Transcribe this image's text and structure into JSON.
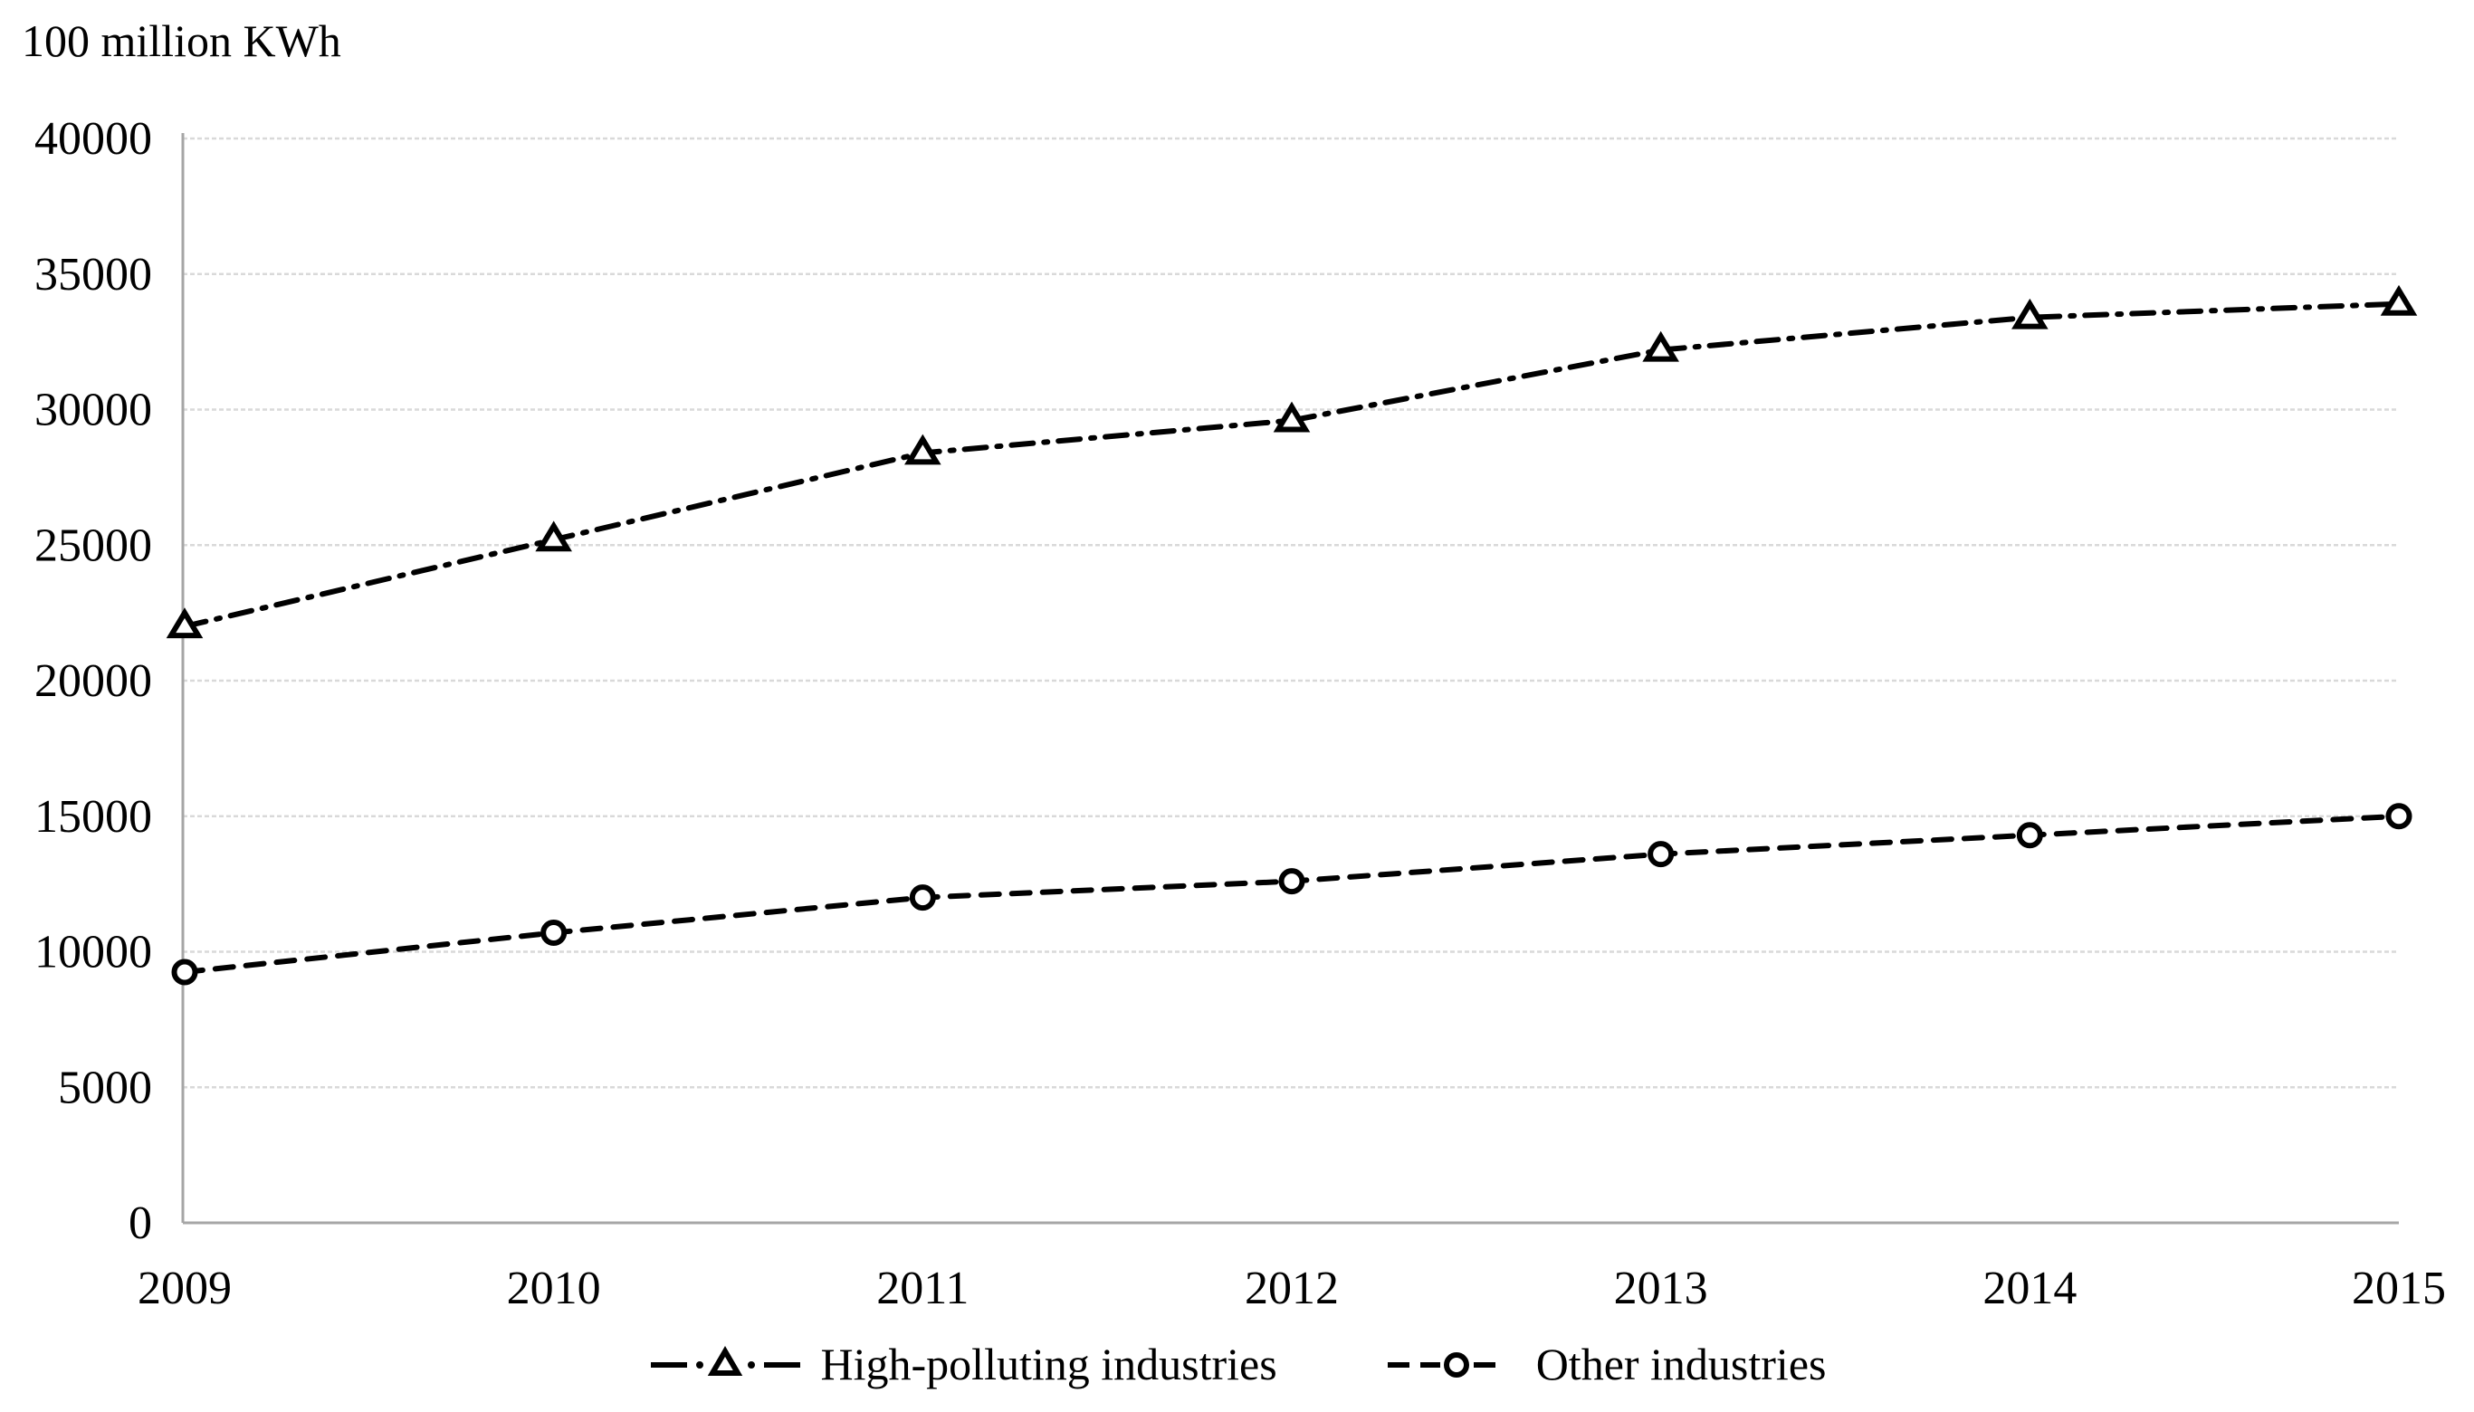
{
  "chart_data": {
    "type": "line",
    "title": "",
    "unit_label": "100 million KWh",
    "x": [
      2009,
      2010,
      2011,
      2012,
      2013,
      2014,
      2015
    ],
    "y_ticks": [
      0,
      5000,
      10000,
      15000,
      20000,
      25000,
      30000,
      35000,
      40000
    ],
    "ylim": [
      0,
      40000
    ],
    "xlabel": "",
    "ylabel": "100 million KWh",
    "grid": "horizontal-dotted",
    "legend_position": "bottom-center",
    "series": [
      {
        "name": "High-polluting industries",
        "marker": "open-triangle",
        "line_style": "dash-dot",
        "color": "#000000",
        "values": [
          22000,
          25200,
          28400,
          29600,
          32200,
          33400,
          33900
        ]
      },
      {
        "name": "Other industries",
        "marker": "open-circle",
        "line_style": "dashed",
        "color": "#000000",
        "values": [
          9250,
          10700,
          12000,
          12600,
          13600,
          14300,
          15000
        ]
      }
    ],
    "colors": {
      "background": "#ffffff",
      "axis": "#a6a6a6",
      "grid": "#d9d9d9",
      "text": "#000000"
    }
  }
}
